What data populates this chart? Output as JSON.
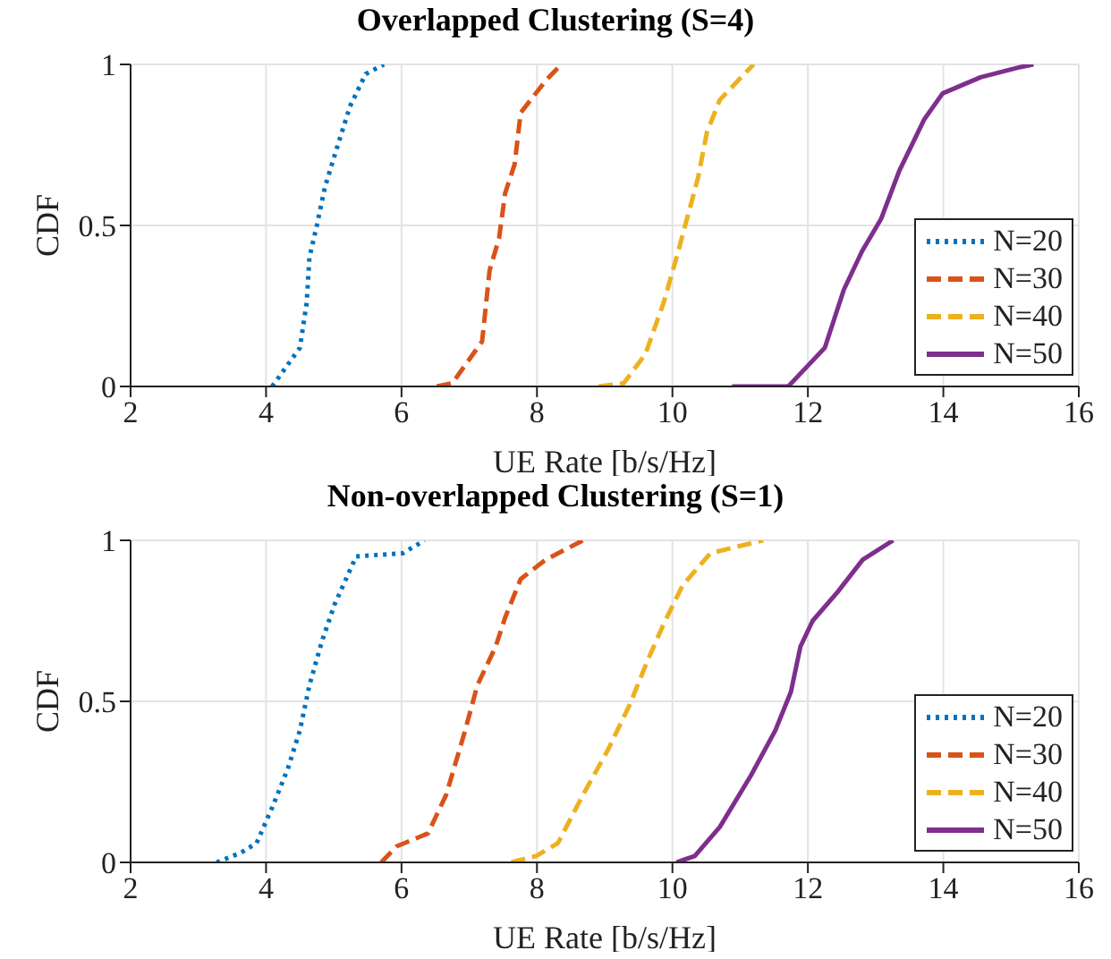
{
  "chart_data": [
    {
      "type": "line",
      "title": "Overlapped Clustering (S=4)",
      "xlabel": "UE Rate [b/s/Hz]",
      "ylabel": "CDF",
      "xlim": [
        2,
        16
      ],
      "xticks": [
        2,
        4,
        6,
        8,
        10,
        12,
        14,
        16
      ],
      "ylim": [
        0,
        1
      ],
      "yticks": [
        0,
        0.5,
        1
      ],
      "grid": true,
      "legend": "bottom right",
      "series": [
        {
          "name": "N=20",
          "color": "#0072bd",
          "line_style": "dotted",
          "x": [
            4.09,
            4.5,
            4.6,
            4.64,
            4.75,
            4.87,
            5.06,
            5.24,
            5.47,
            5.74
          ],
          "values": [
            0,
            0.12,
            0.26,
            0.4,
            0.5,
            0.62,
            0.75,
            0.87,
            0.97,
            1
          ]
        },
        {
          "name": "N=30",
          "color": "#d95319",
          "line_style": "dashed",
          "x": [
            6.52,
            6.75,
            7.19,
            7.3,
            7.44,
            7.53,
            7.67,
            7.76,
            8.13,
            8.36
          ],
          "values": [
            0,
            0.01,
            0.14,
            0.36,
            0.46,
            0.6,
            0.69,
            0.85,
            0.95,
            1
          ]
        },
        {
          "name": "N=40",
          "color": "#edb120",
          "line_style": "dashed",
          "x": [
            8.91,
            9.28,
            9.6,
            9.87,
            10.06,
            10.24,
            10.38,
            10.51,
            10.7,
            11.06,
            11.2
          ],
          "values": [
            0,
            0.01,
            0.1,
            0.26,
            0.4,
            0.54,
            0.65,
            0.79,
            0.89,
            0.97,
            1
          ]
        },
        {
          "name": "N=50",
          "color": "#7e2f8e",
          "line_style": "solid",
          "x": [
            10.88,
            11.71,
            11.98,
            12.25,
            12.53,
            12.8,
            13.08,
            13.35,
            13.72,
            13.99,
            14.55,
            15.1,
            15.33
          ],
          "values": [
            0,
            0,
            0.06,
            0.12,
            0.3,
            0.42,
            0.52,
            0.67,
            0.83,
            0.91,
            0.96,
            0.99,
            1
          ]
        }
      ]
    },
    {
      "type": "line",
      "title": "Non-overlapped Clustering (S=1)",
      "xlabel": "UE Rate [b/s/Hz]",
      "ylabel": "CDF",
      "xlim": [
        2,
        16
      ],
      "xticks": [
        2,
        4,
        6,
        8,
        10,
        12,
        14,
        16
      ],
      "ylim": [
        0,
        1
      ],
      "yticks": [
        0,
        0.5,
        1
      ],
      "grid": true,
      "legend": "bottom right",
      "series": [
        {
          "name": "N=20",
          "color": "#0072bd",
          "line_style": "dotted",
          "x": [
            3.27,
            3.63,
            3.86,
            4.09,
            4.32,
            4.5,
            4.64,
            4.83,
            5.01,
            5.33,
            6.02,
            6.34
          ],
          "values": [
            0,
            0.03,
            0.06,
            0.17,
            0.29,
            0.41,
            0.55,
            0.69,
            0.8,
            0.95,
            0.96,
            1
          ]
        },
        {
          "name": "N=30",
          "color": "#d95319",
          "line_style": "dashed",
          "x": [
            5.7,
            5.93,
            6.39,
            6.66,
            6.94,
            7.12,
            7.39,
            7.53,
            7.76,
            8.13,
            8.68
          ],
          "values": [
            0,
            0.05,
            0.09,
            0.21,
            0.41,
            0.55,
            0.67,
            0.76,
            0.88,
            0.94,
            1
          ]
        },
        {
          "name": "N=40",
          "color": "#edb120",
          "line_style": "dashed",
          "x": [
            7.62,
            7.99,
            8.31,
            8.68,
            9.05,
            9.37,
            9.64,
            9.87,
            10.15,
            10.56,
            11.34
          ],
          "values": [
            0,
            0.02,
            0.06,
            0.21,
            0.35,
            0.49,
            0.63,
            0.74,
            0.86,
            0.96,
            1
          ]
        },
        {
          "name": "N=50",
          "color": "#7e2f8e",
          "line_style": "solid",
          "x": [
            10.06,
            10.33,
            10.7,
            11.16,
            11.52,
            11.75,
            11.89,
            12.07,
            12.44,
            12.81,
            13.26
          ],
          "values": [
            0,
            0.02,
            0.11,
            0.27,
            0.41,
            0.53,
            0.67,
            0.75,
            0.84,
            0.94,
            1
          ]
        }
      ]
    }
  ]
}
